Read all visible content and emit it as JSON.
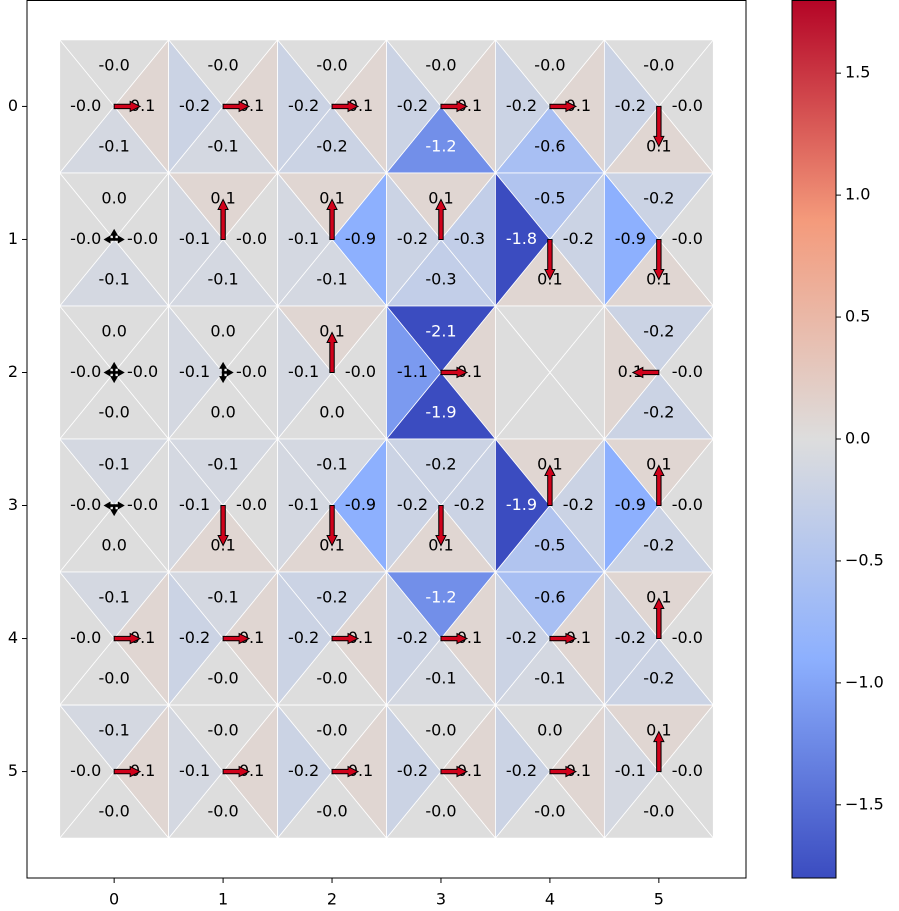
{
  "chart_data": {
    "type": "qgrid",
    "action_order": [
      "up",
      "right",
      "down",
      "left"
    ],
    "values": [
      [
        [
          0,
          0.1,
          -0.1,
          0
        ],
        [
          0,
          0.1,
          -0.1,
          -0.2
        ],
        [
          0,
          0.1,
          -0.2,
          -0.2
        ],
        [
          0,
          0.1,
          -1.2,
          -0.2
        ],
        [
          0,
          0.1,
          -0.6,
          -0.2
        ],
        [
          0,
          0,
          0.1,
          -0.2
        ]
      ],
      [
        [
          0,
          0,
          -0.1,
          0
        ],
        [
          0.1,
          0,
          -0.1,
          -0.1
        ],
        [
          0.1,
          -0.9,
          -0.1,
          -0.1
        ],
        [
          0.1,
          -0.3,
          -0.3,
          -0.2
        ],
        [
          -0.5,
          -0.2,
          0.1,
          -1.8
        ],
        [
          -0.2,
          0,
          0.1,
          -0.9
        ]
      ],
      [
        [
          0,
          0,
          0,
          0
        ],
        [
          0,
          0,
          0,
          -0.1
        ],
        [
          0.1,
          0,
          0,
          -0.1
        ],
        [
          -2.1,
          0.1,
          -1.9,
          -1.1
        ],
        [
          null,
          null,
          null,
          null
        ],
        [
          -0.2,
          0,
          -0.2,
          0.1
        ]
      ],
      [
        [
          -0.1,
          0,
          0,
          0
        ],
        [
          -0.1,
          0,
          0.1,
          -0.1
        ],
        [
          -0.1,
          -0.9,
          0.1,
          -0.1
        ],
        [
          -0.2,
          -0.2,
          0.1,
          -0.2
        ],
        [
          0.1,
          -0.2,
          -0.5,
          -1.9
        ],
        [
          0.1,
          0,
          -0.2,
          -0.9
        ]
      ],
      [
        [
          -0.1,
          0.1,
          0,
          0
        ],
        [
          -0.1,
          0.1,
          0,
          -0.2
        ],
        [
          -0.2,
          0.1,
          0,
          -0.2
        ],
        [
          -1.2,
          0.1,
          -0.1,
          -0.2
        ],
        [
          -0.6,
          0.1,
          -0.1,
          -0.2
        ],
        [
          0.1,
          0,
          -0.2,
          -0.2
        ]
      ],
      [
        [
          -0.1,
          0.1,
          0,
          0
        ],
        [
          0,
          0.1,
          0,
          -0.1
        ],
        [
          0,
          0.1,
          0,
          -0.2
        ],
        [
          0,
          0.1,
          0,
          -0.2
        ],
        [
          0,
          0.1,
          0,
          -0.2
        ],
        [
          0.1,
          0,
          0,
          -0.1
        ]
      ]
    ],
    "value_labels": [
      [
        [
          "-0.0",
          "0.1",
          "-0.1",
          "-0.0"
        ],
        [
          "-0.0",
          "0.1",
          "-0.1",
          "-0.2"
        ],
        [
          "-0.0",
          "0.1",
          "-0.2",
          "-0.2"
        ],
        [
          "-0.0",
          "0.1",
          "-1.2",
          "-0.2"
        ],
        [
          "-0.0",
          "0.1",
          "-0.6",
          "-0.2"
        ],
        [
          "-0.0",
          "-0.0",
          "0.1",
          "-0.2"
        ]
      ],
      [
        [
          "0.0",
          "-0.0",
          "-0.1",
          "-0.0"
        ],
        [
          "0.1",
          "-0.0",
          "-0.1",
          "-0.1"
        ],
        [
          "0.1",
          "-0.9",
          "-0.1",
          "-0.1"
        ],
        [
          "0.1",
          "-0.3",
          "-0.3",
          "-0.2"
        ],
        [
          "-0.5",
          "-0.2",
          "0.1",
          "-1.8"
        ],
        [
          "-0.2",
          "-0.0",
          "0.1",
          "-0.9"
        ]
      ],
      [
        [
          "0.0",
          "-0.0",
          "-0.0",
          "-0.0"
        ],
        [
          "0.0",
          "-0.0",
          "0.0",
          "-0.1"
        ],
        [
          "0.1",
          "-0.0",
          "0.0",
          "-0.1"
        ],
        [
          "-2.1",
          "0.1",
          "-1.9",
          "-1.1"
        ],
        [
          null,
          null,
          null,
          null
        ],
        [
          "-0.2",
          "-0.0",
          "-0.2",
          "0.1"
        ]
      ],
      [
        [
          "-0.1",
          "-0.0",
          "0.0",
          "-0.0"
        ],
        [
          "-0.1",
          "-0.0",
          "0.1",
          "-0.1"
        ],
        [
          "-0.1",
          "-0.9",
          "0.1",
          "-0.1"
        ],
        [
          "-0.2",
          "-0.2",
          "0.1",
          "-0.2"
        ],
        [
          "0.1",
          "-0.2",
          "-0.5",
          "-1.9"
        ],
        [
          "0.1",
          "-0.0",
          "-0.2",
          "-0.9"
        ]
      ],
      [
        [
          "-0.1",
          "0.1",
          "-0.0",
          "-0.0"
        ],
        [
          "-0.1",
          "0.1",
          "-0.0",
          "-0.2"
        ],
        [
          "-0.2",
          "0.1",
          "-0.0",
          "-0.2"
        ],
        [
          "-1.2",
          "0.1",
          "-0.1",
          "-0.2"
        ],
        [
          "-0.6",
          "0.1",
          "-0.1",
          "-0.2"
        ],
        [
          "0.1",
          "-0.0",
          "-0.2",
          "-0.2"
        ]
      ],
      [
        [
          "-0.1",
          "0.1",
          "-0.0",
          "-0.0"
        ],
        [
          "-0.0",
          "0.1",
          "-0.0",
          "-0.1"
        ],
        [
          "-0.0",
          "0.1",
          "-0.0",
          "-0.2"
        ],
        [
          "-0.0",
          "0.1",
          "-0.0",
          "-0.2"
        ],
        [
          "0.0",
          "0.1",
          "-0.0",
          "-0.2"
        ],
        [
          "0.1",
          "-0.0",
          "-0.0",
          "-0.1"
        ]
      ]
    ],
    "xlim": [
      -0.8,
      5.8
    ],
    "ylim": [
      5.8,
      -0.8
    ],
    "xticks": [
      0,
      1,
      2,
      3,
      4,
      5
    ],
    "yticks": [
      0,
      1,
      2,
      3,
      4,
      5
    ],
    "colors": [
      "#3b4cc0",
      "#8db0fe",
      "#dddddd",
      "#f49a7b",
      "#b40426"
    ],
    "clim": [
      -1.8,
      1.8
    ],
    "colorbar_ticks": [
      {
        "value": -1.5,
        "label": "−1.5"
      },
      {
        "value": -1.0,
        "label": "−1.0"
      },
      {
        "value": -0.5,
        "label": "−0.5"
      },
      {
        "value": 0.0,
        "label": "0.0"
      },
      0.5,
      {
        "value": 1.0,
        "label": "1.0"
      },
      1.5
    ]
  }
}
